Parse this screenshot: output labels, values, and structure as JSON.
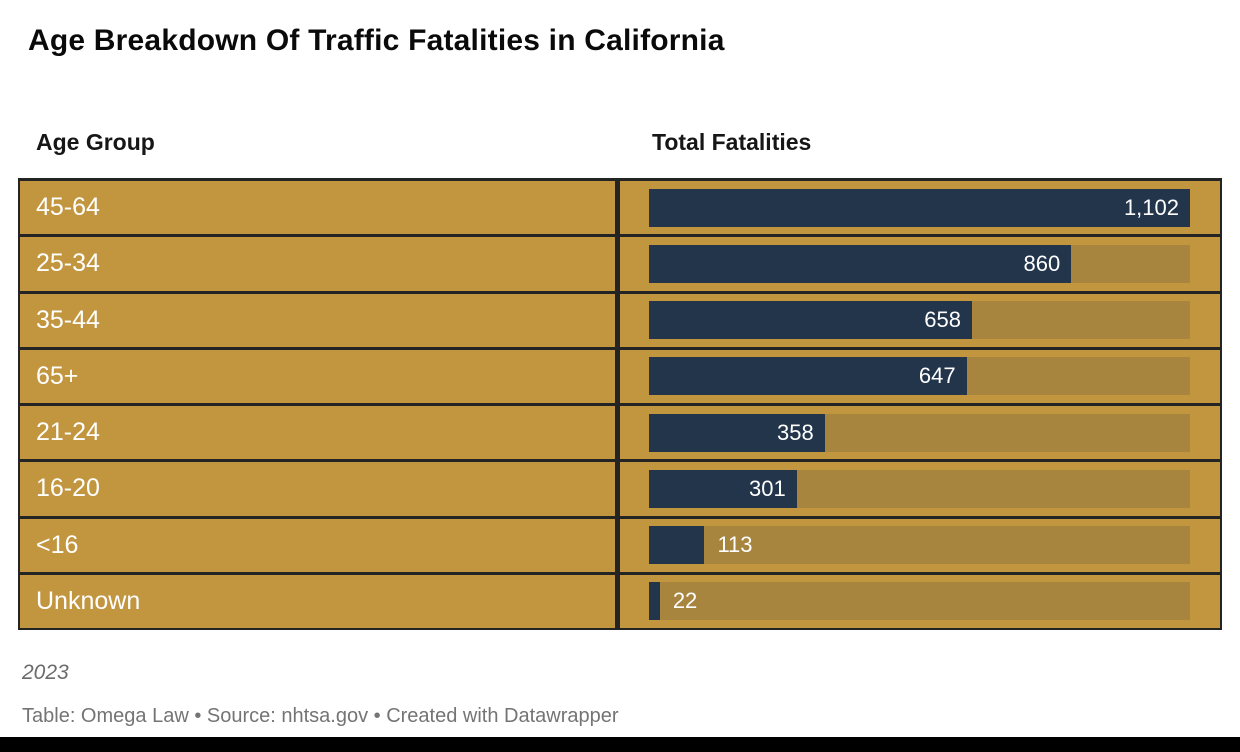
{
  "title": "Age Breakdown Of Traffic Fatalities in California",
  "columns": {
    "age_group": "Age Group",
    "total_fatalities": "Total Fatalities"
  },
  "chart_data": {
    "type": "bar",
    "orientation": "horizontal",
    "title": "Age Breakdown Of Traffic Fatalities in California",
    "categories": [
      "45-64",
      "25-34",
      "35-44",
      "65+",
      "21-24",
      "16-20",
      "<16",
      "Unknown"
    ],
    "values": [
      1102,
      860,
      658,
      647,
      358,
      301,
      113,
      22
    ],
    "value_labels": [
      "1,102",
      "860",
      "658",
      "647",
      "358",
      "301",
      "113",
      "22"
    ],
    "xlabel": "Total Fatalities",
    "ylabel": "Age Group",
    "xlim": [
      0,
      1102
    ],
    "grid": false,
    "legend": false
  },
  "notes": {
    "year": "2023",
    "credit": "Table: Omega Law • Source: nhtsa.gov • Created with Datawrapper"
  },
  "colors": {
    "row_gold": "#c2953f",
    "bar_navy": "#23354a",
    "track_overlay": "rgba(35,50,70,0.16)",
    "border_dark": "#242424",
    "value_text": "#ffffff",
    "label_text": "#ffffff",
    "title_black": "#0a0a0a",
    "note_gray": "#747474"
  }
}
